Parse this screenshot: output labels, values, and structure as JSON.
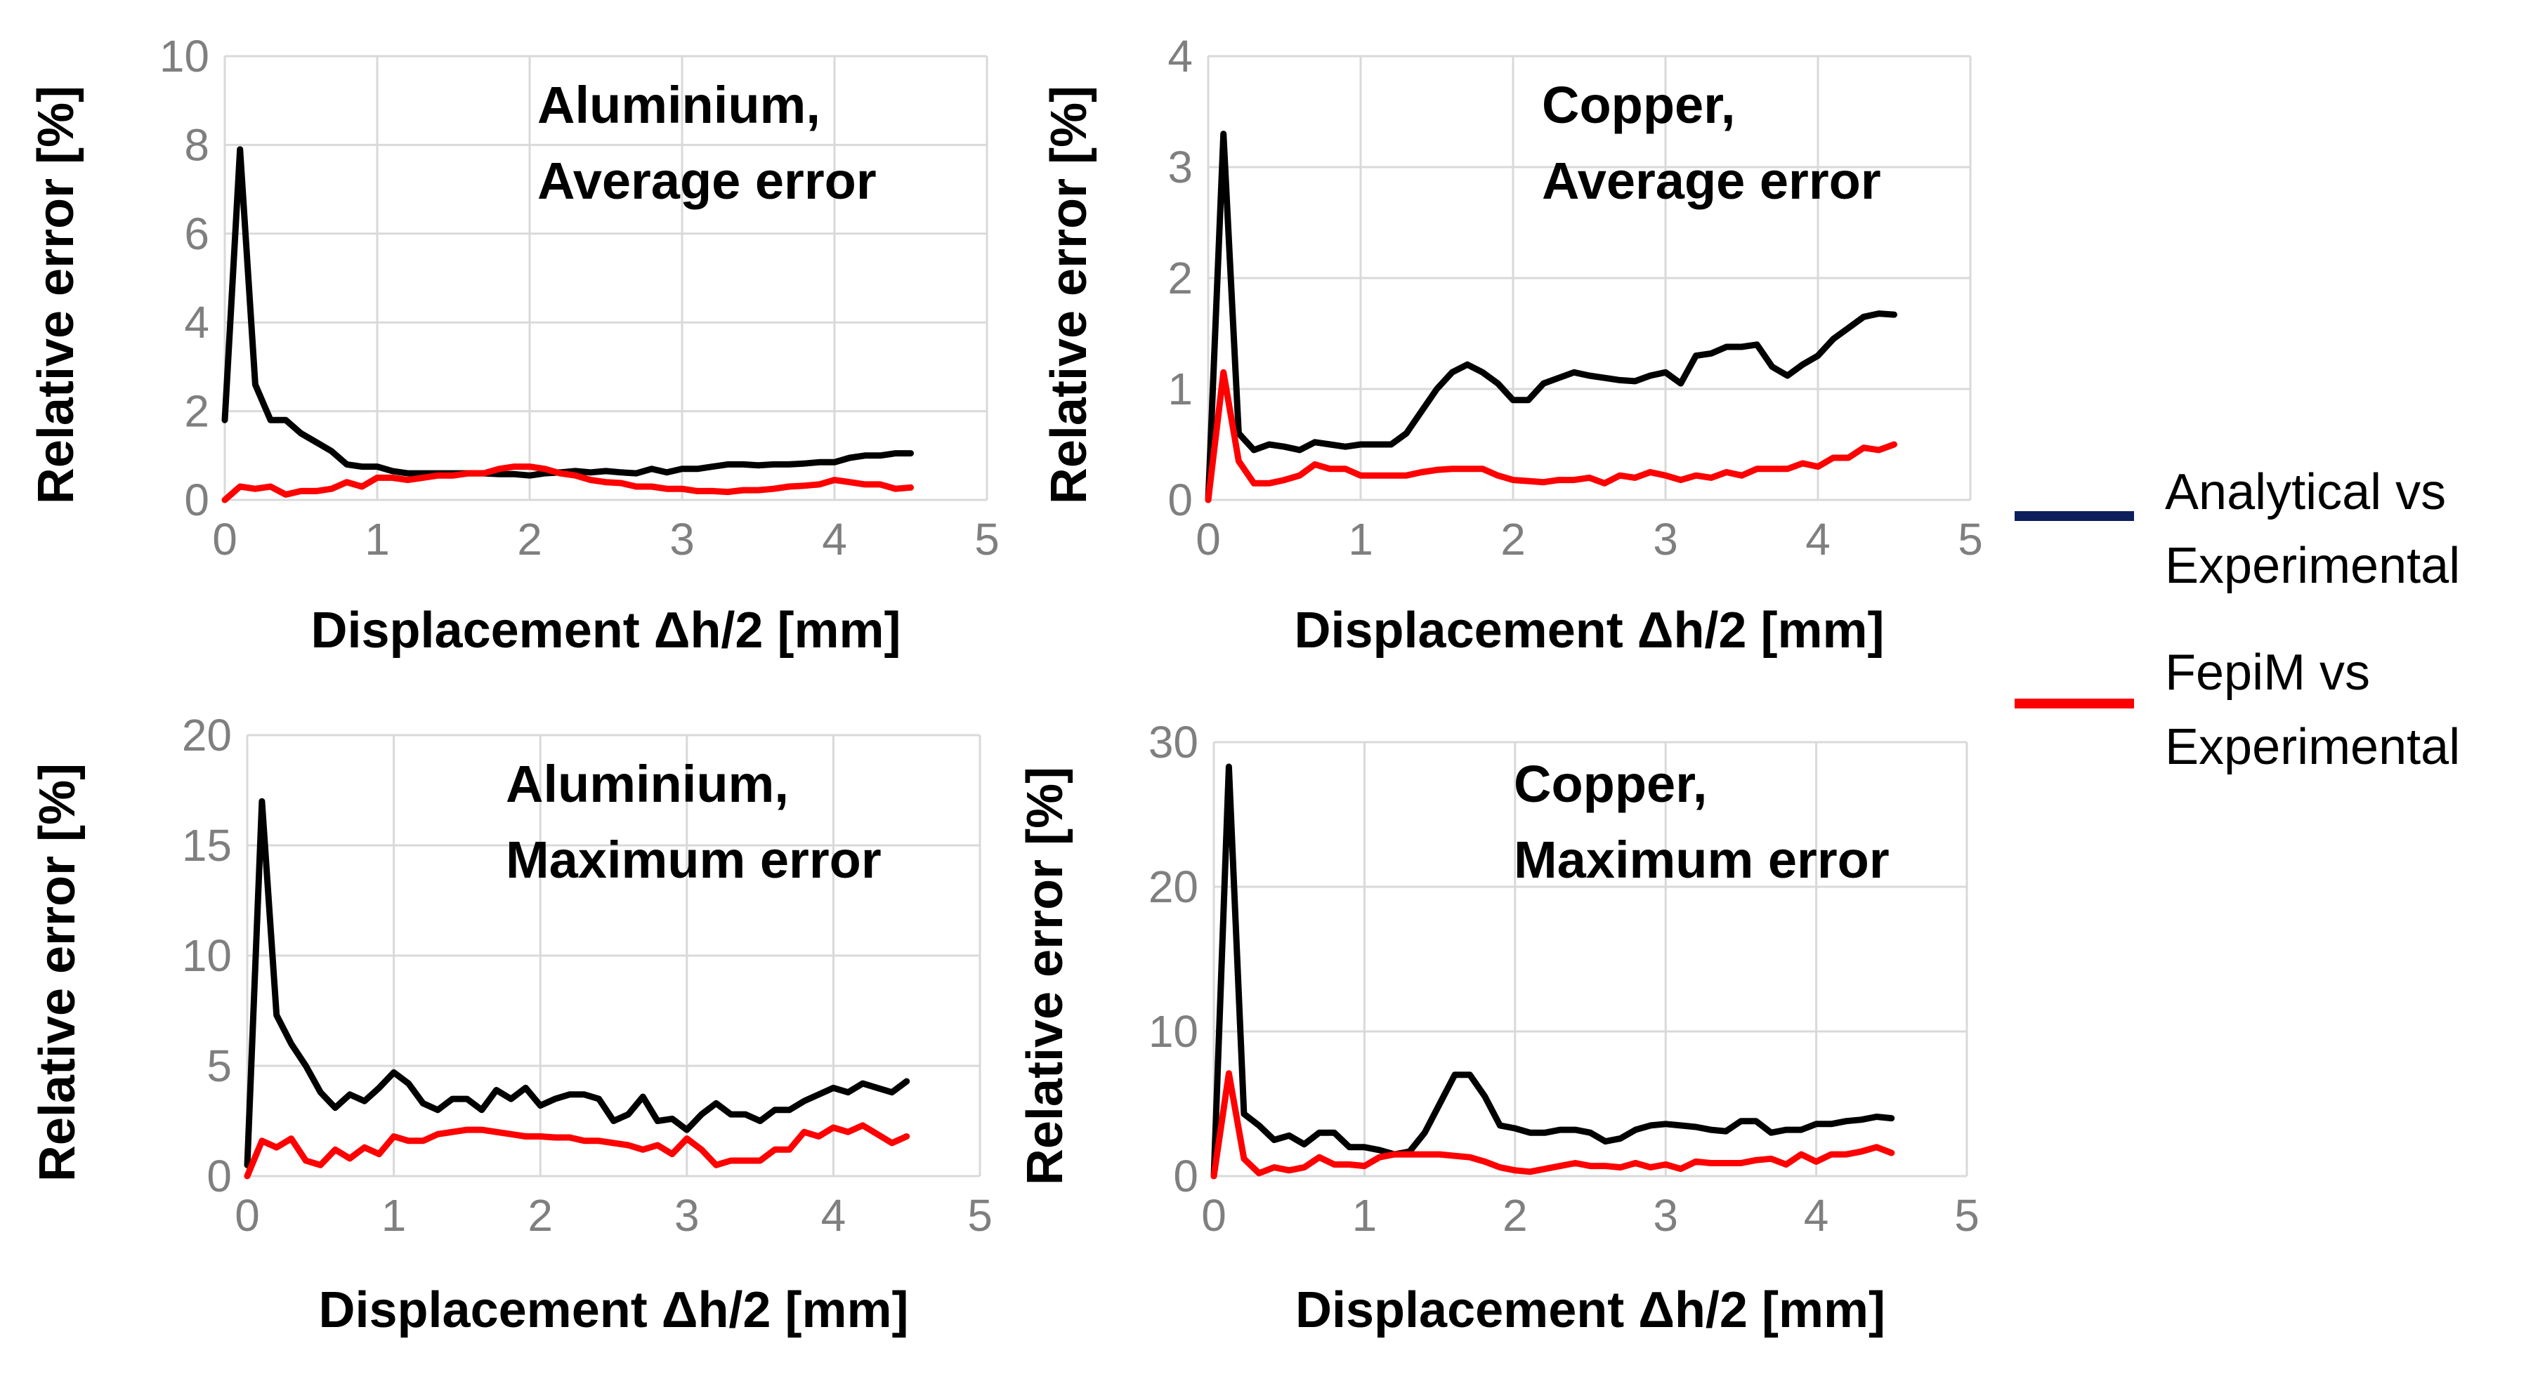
{
  "legend": {
    "placement": "right",
    "entries": [
      {
        "lines": [
          "Analytical vs",
          "Experimental"
        ],
        "color": "#0c1f5c"
      },
      {
        "lines": [
          "FepiM vs",
          "Experimental"
        ],
        "color": "#ff0000"
      }
    ]
  },
  "series_colors": {
    "analytical": "#000000",
    "fepim": "#ff0000"
  },
  "chart_data": [
    {
      "type": "line",
      "title_lines": [
        "Aluminium,",
        "Average error"
      ],
      "xlabel": "Displacement Δh/2  [mm]",
      "ylabel": "Relative error [%]",
      "xlim": [
        0,
        5
      ],
      "ylim": [
        0,
        10
      ],
      "xticks": [
        0,
        1,
        2,
        3,
        4,
        5
      ],
      "yticks": [
        0,
        2,
        4,
        6,
        8,
        10
      ],
      "grid": true,
      "series": [
        {
          "name": "Analytical vs Experimental",
          "x": [
            0,
            0.1,
            0.2,
            0.3,
            0.4,
            0.5,
            0.6,
            0.7,
            0.8,
            0.9,
            1.0,
            1.1,
            1.2,
            1.3,
            1.4,
            1.5,
            1.6,
            1.7,
            1.8,
            1.9,
            2.0,
            2.1,
            2.2,
            2.3,
            2.4,
            2.5,
            2.6,
            2.7,
            2.8,
            2.9,
            3.0,
            3.1,
            3.2,
            3.3,
            3.4,
            3.5,
            3.6,
            3.7,
            3.8,
            3.9,
            4.0,
            4.1,
            4.2,
            4.3,
            4.4,
            4.5
          ],
          "values": [
            1.8,
            7.9,
            2.6,
            1.8,
            1.8,
            1.5,
            1.3,
            1.1,
            0.8,
            0.75,
            0.75,
            0.65,
            0.6,
            0.6,
            0.6,
            0.6,
            0.6,
            0.6,
            0.58,
            0.58,
            0.55,
            0.6,
            0.62,
            0.65,
            0.62,
            0.65,
            0.62,
            0.6,
            0.7,
            0.62,
            0.7,
            0.7,
            0.75,
            0.8,
            0.8,
            0.78,
            0.8,
            0.8,
            0.82,
            0.85,
            0.85,
            0.95,
            1.0,
            1.0,
            1.05,
            1.05
          ]
        },
        {
          "name": "FepiM vs Experimental",
          "x": [
            0,
            0.1,
            0.2,
            0.3,
            0.4,
            0.5,
            0.6,
            0.7,
            0.8,
            0.9,
            1.0,
            1.1,
            1.2,
            1.3,
            1.4,
            1.5,
            1.6,
            1.7,
            1.8,
            1.9,
            2.0,
            2.1,
            2.2,
            2.3,
            2.4,
            2.5,
            2.6,
            2.7,
            2.8,
            2.9,
            3.0,
            3.1,
            3.2,
            3.3,
            3.4,
            3.5,
            3.6,
            3.7,
            3.8,
            3.9,
            4.0,
            4.1,
            4.2,
            4.3,
            4.4,
            4.5
          ],
          "values": [
            0.0,
            0.3,
            0.25,
            0.3,
            0.12,
            0.2,
            0.2,
            0.25,
            0.4,
            0.3,
            0.5,
            0.5,
            0.45,
            0.5,
            0.55,
            0.55,
            0.6,
            0.6,
            0.7,
            0.75,
            0.75,
            0.7,
            0.6,
            0.55,
            0.45,
            0.4,
            0.38,
            0.3,
            0.3,
            0.25,
            0.25,
            0.2,
            0.2,
            0.18,
            0.22,
            0.22,
            0.25,
            0.3,
            0.32,
            0.35,
            0.45,
            0.4,
            0.35,
            0.35,
            0.25,
            0.28
          ]
        }
      ]
    },
    {
      "type": "line",
      "title_lines": [
        "Copper,",
        "Average error"
      ],
      "xlabel": "Displacement Δh/2  [mm]",
      "ylabel": "Relative error [%]",
      "xlim": [
        0,
        5
      ],
      "ylim": [
        0,
        4
      ],
      "xticks": [
        0,
        1,
        2,
        3,
        4,
        5
      ],
      "yticks": [
        0,
        1,
        2,
        3,
        4
      ],
      "grid": true,
      "series": [
        {
          "name": "Analytical vs Experimental",
          "x": [
            0,
            0.1,
            0.2,
            0.3,
            0.4,
            0.5,
            0.6,
            0.7,
            0.8,
            0.9,
            1.0,
            1.1,
            1.2,
            1.3,
            1.4,
            1.5,
            1.6,
            1.7,
            1.8,
            1.9,
            2.0,
            2.1,
            2.2,
            2.3,
            2.4,
            2.5,
            2.6,
            2.7,
            2.8,
            2.9,
            3.0,
            3.1,
            3.2,
            3.3,
            3.4,
            3.5,
            3.6,
            3.7,
            3.8,
            3.9,
            4.0,
            4.1,
            4.2,
            4.3,
            4.4,
            4.5
          ],
          "values": [
            0.0,
            3.3,
            0.6,
            0.45,
            0.5,
            0.48,
            0.45,
            0.52,
            0.5,
            0.48,
            0.5,
            0.5,
            0.5,
            0.6,
            0.8,
            1.0,
            1.15,
            1.22,
            1.15,
            1.05,
            0.9,
            0.9,
            1.05,
            1.1,
            1.15,
            1.12,
            1.1,
            1.08,
            1.07,
            1.12,
            1.15,
            1.05,
            1.3,
            1.32,
            1.38,
            1.38,
            1.4,
            1.2,
            1.12,
            1.22,
            1.3,
            1.45,
            1.55,
            1.65,
            1.68,
            1.67
          ]
        },
        {
          "name": "FepiM vs Experimental",
          "x": [
            0,
            0.1,
            0.2,
            0.3,
            0.4,
            0.5,
            0.6,
            0.7,
            0.8,
            0.9,
            1.0,
            1.1,
            1.2,
            1.3,
            1.4,
            1.5,
            1.6,
            1.7,
            1.8,
            1.9,
            2.0,
            2.1,
            2.2,
            2.3,
            2.4,
            2.5,
            2.6,
            2.7,
            2.8,
            2.9,
            3.0,
            3.1,
            3.2,
            3.3,
            3.4,
            3.5,
            3.6,
            3.7,
            3.8,
            3.9,
            4.0,
            4.1,
            4.2,
            4.3,
            4.4,
            4.5
          ],
          "values": [
            0.0,
            1.15,
            0.35,
            0.15,
            0.15,
            0.18,
            0.22,
            0.32,
            0.28,
            0.28,
            0.22,
            0.22,
            0.22,
            0.22,
            0.25,
            0.27,
            0.28,
            0.28,
            0.28,
            0.22,
            0.18,
            0.17,
            0.16,
            0.18,
            0.18,
            0.2,
            0.15,
            0.22,
            0.2,
            0.25,
            0.22,
            0.18,
            0.22,
            0.2,
            0.25,
            0.22,
            0.28,
            0.28,
            0.28,
            0.33,
            0.3,
            0.38,
            0.38,
            0.47,
            0.45,
            0.5
          ]
        }
      ]
    },
    {
      "type": "line",
      "title_lines": [
        "Aluminium,",
        "Maximum error"
      ],
      "xlabel": "Displacement Δh/2  [mm]",
      "ylabel": "Relative error [%]",
      "xlim": [
        0,
        5
      ],
      "ylim": [
        0,
        20
      ],
      "xticks": [
        0,
        1,
        2,
        3,
        4,
        5
      ],
      "yticks": [
        0,
        5,
        10,
        15,
        20
      ],
      "grid": true,
      "series": [
        {
          "name": "Analytical vs Experimental",
          "x": [
            0,
            0.1,
            0.2,
            0.3,
            0.4,
            0.5,
            0.6,
            0.7,
            0.8,
            0.9,
            1.0,
            1.1,
            1.2,
            1.3,
            1.4,
            1.5,
            1.6,
            1.7,
            1.8,
            1.9,
            2.0,
            2.1,
            2.2,
            2.3,
            2.4,
            2.5,
            2.6,
            2.7,
            2.8,
            2.9,
            3.0,
            3.1,
            3.2,
            3.3,
            3.4,
            3.5,
            3.6,
            3.7,
            3.8,
            3.9,
            4.0,
            4.1,
            4.2,
            4.3,
            4.4,
            4.5
          ],
          "values": [
            0.5,
            17.0,
            7.3,
            6.0,
            5.0,
            3.8,
            3.1,
            3.7,
            3.4,
            4.0,
            4.7,
            4.2,
            3.3,
            3.0,
            3.5,
            3.5,
            3.0,
            3.9,
            3.5,
            4.0,
            3.2,
            3.5,
            3.7,
            3.7,
            3.5,
            2.5,
            2.8,
            3.6,
            2.5,
            2.6,
            2.1,
            2.8,
            3.3,
            2.8,
            2.8,
            2.5,
            3.0,
            3.0,
            3.4,
            3.7,
            4.0,
            3.8,
            4.2,
            4.0,
            3.8,
            4.3
          ]
        },
        {
          "name": "FepiM vs Experimental",
          "x": [
            0,
            0.1,
            0.2,
            0.3,
            0.4,
            0.5,
            0.6,
            0.7,
            0.8,
            0.9,
            1.0,
            1.1,
            1.2,
            1.3,
            1.4,
            1.5,
            1.6,
            1.7,
            1.8,
            1.9,
            2.0,
            2.1,
            2.2,
            2.3,
            2.4,
            2.5,
            2.6,
            2.7,
            2.8,
            2.9,
            3.0,
            3.1,
            3.2,
            3.3,
            3.4,
            3.5,
            3.6,
            3.7,
            3.8,
            3.9,
            4.0,
            4.1,
            4.2,
            4.3,
            4.4,
            4.5
          ],
          "values": [
            0.0,
            1.6,
            1.3,
            1.7,
            0.7,
            0.5,
            1.2,
            0.8,
            1.3,
            1.0,
            1.8,
            1.6,
            1.6,
            1.9,
            2.0,
            2.1,
            2.1,
            2.0,
            1.9,
            1.8,
            1.8,
            1.75,
            1.75,
            1.6,
            1.6,
            1.5,
            1.4,
            1.2,
            1.4,
            1.0,
            1.7,
            1.2,
            0.5,
            0.7,
            0.7,
            0.7,
            1.2,
            1.2,
            2.0,
            1.8,
            2.2,
            2.0,
            2.3,
            1.9,
            1.5,
            1.8
          ]
        }
      ]
    },
    {
      "type": "line",
      "title_lines": [
        "Copper,",
        "Maximum error"
      ],
      "xlabel": "Displacement Δh/2  [mm]",
      "ylabel": "Relative error [%]",
      "xlim": [
        0,
        5
      ],
      "ylim": [
        0,
        30
      ],
      "xticks": [
        0,
        1,
        2,
        3,
        4,
        5
      ],
      "yticks": [
        0,
        10,
        20,
        30
      ],
      "grid": true,
      "series": [
        {
          "name": "Analytical vs Experimental",
          "x": [
            0,
            0.1,
            0.2,
            0.3,
            0.4,
            0.5,
            0.6,
            0.7,
            0.8,
            0.9,
            1.0,
            1.1,
            1.2,
            1.3,
            1.4,
            1.5,
            1.6,
            1.7,
            1.8,
            1.9,
            2.0,
            2.1,
            2.2,
            2.3,
            2.4,
            2.5,
            2.6,
            2.7,
            2.8,
            2.9,
            3.0,
            3.1,
            3.2,
            3.3,
            3.4,
            3.5,
            3.6,
            3.7,
            3.8,
            3.9,
            4.0,
            4.1,
            4.2,
            4.3,
            4.4,
            4.5
          ],
          "values": [
            0.0,
            28.3,
            4.3,
            3.5,
            2.5,
            2.8,
            2.2,
            3.0,
            3.0,
            2.0,
            2.0,
            1.8,
            1.5,
            1.7,
            3.0,
            5.0,
            7.0,
            7.0,
            5.5,
            3.5,
            3.3,
            3.0,
            3.0,
            3.2,
            3.2,
            3.0,
            2.4,
            2.6,
            3.2,
            3.5,
            3.6,
            3.5,
            3.4,
            3.2,
            3.1,
            3.8,
            3.8,
            3.0,
            3.2,
            3.2,
            3.6,
            3.6,
            3.8,
            3.9,
            4.1,
            4.0
          ]
        },
        {
          "name": "FepiM vs Experimental",
          "x": [
            0,
            0.1,
            0.2,
            0.3,
            0.4,
            0.5,
            0.6,
            0.7,
            0.8,
            0.9,
            1.0,
            1.1,
            1.2,
            1.3,
            1.4,
            1.5,
            1.6,
            1.7,
            1.8,
            1.9,
            2.0,
            2.1,
            2.2,
            2.3,
            2.4,
            2.5,
            2.6,
            2.7,
            2.8,
            2.9,
            3.0,
            3.1,
            3.2,
            3.3,
            3.4,
            3.5,
            3.6,
            3.7,
            3.8,
            3.9,
            4.0,
            4.1,
            4.2,
            4.3,
            4.4,
            4.5
          ],
          "values": [
            0.0,
            7.1,
            1.2,
            0.2,
            0.6,
            0.4,
            0.6,
            1.3,
            0.8,
            0.8,
            0.7,
            1.3,
            1.5,
            1.5,
            1.5,
            1.5,
            1.4,
            1.3,
            1.0,
            0.6,
            0.4,
            0.3,
            0.5,
            0.7,
            0.9,
            0.7,
            0.7,
            0.6,
            0.9,
            0.6,
            0.8,
            0.5,
            1.0,
            0.9,
            0.9,
            0.9,
            1.1,
            1.2,
            0.8,
            1.5,
            1.0,
            1.5,
            1.5,
            1.7,
            2.0,
            1.6
          ]
        }
      ]
    }
  ]
}
